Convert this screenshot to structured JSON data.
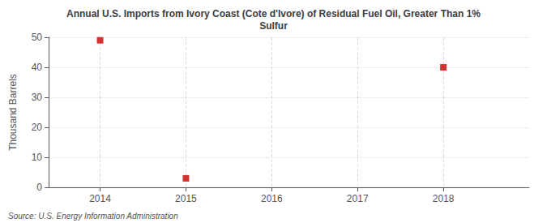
{
  "chart_data": {
    "type": "scatter",
    "title": "Annual U.S. Imports from Ivory Coast (Cote d'Ivore) of Residual Fuel Oil, Greater Than 1%\nSulfur",
    "ylabel": "Thousand Barrels",
    "source": "Source: U.S. Energy Information Administration",
    "x": [
      2014,
      2015,
      2018
    ],
    "values": [
      49,
      3,
      40
    ],
    "color": "#cc0000",
    "marker": "square",
    "xlim": [
      2013.4,
      2019.0
    ],
    "xticks": [
      2014,
      2015,
      2016,
      2017,
      2018
    ],
    "ylim": [
      0,
      50
    ],
    "yticks": [
      0,
      10,
      20,
      30,
      40,
      50
    ],
    "grid": true
  }
}
